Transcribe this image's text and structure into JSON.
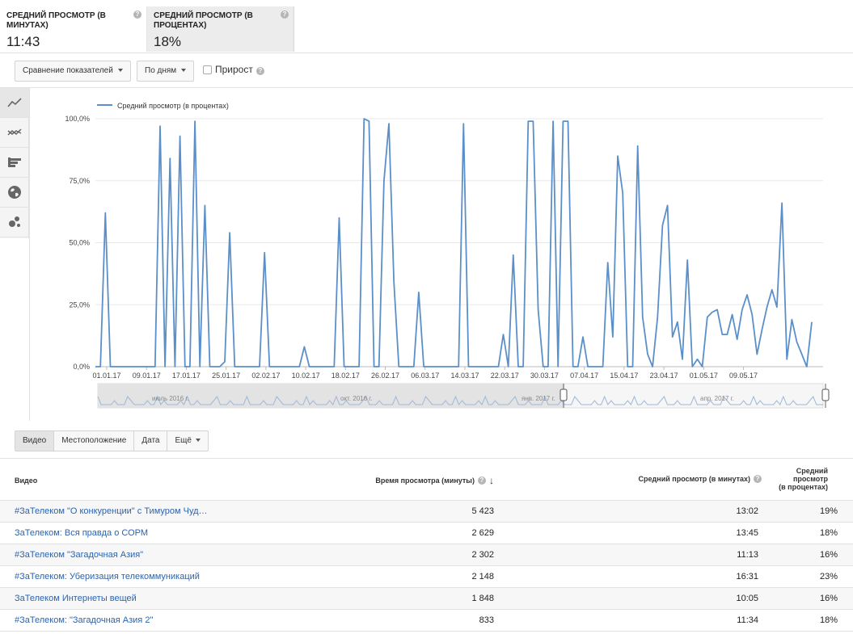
{
  "metrics": [
    {
      "title": "Средний просмотр (в минутах)",
      "value": "11:43"
    },
    {
      "title": "Средний просмотр (в процентах)",
      "value": "18%"
    }
  ],
  "toolbar": {
    "compare_label": "Сравнение показателей",
    "period_label": "По дням",
    "growth_label": "Прирост"
  },
  "sidenav": [
    "line-chart-icon",
    "multi-line-chart-icon",
    "bar-chart-icon",
    "globe-icon",
    "bubble-chart-icon"
  ],
  "chart_data": {
    "type": "line",
    "legend": "Средний просмотр (в процентах)",
    "color": "#5b8fca",
    "y_ticks": [
      "0,0%",
      "25,0%",
      "50,0%",
      "75,0%",
      "100,0%"
    ],
    "ylim": [
      0,
      100
    ],
    "x_ticks": [
      "01.01.17",
      "09.01.17",
      "17.01.17",
      "25.01.17",
      "02.02.17",
      "10.02.17",
      "18.02.17",
      "26.02.17",
      "06.03.17",
      "14.03.17",
      "22.03.17",
      "30.03.17",
      "07.04.17",
      "15.04.17",
      "23.04.17",
      "01.05.17",
      "09.05.17"
    ],
    "values": [
      0,
      0,
      62,
      0,
      0,
      0,
      0,
      0,
      0,
      0,
      0,
      0,
      0,
      97,
      0,
      84,
      0,
      93,
      0,
      0,
      99,
      0,
      65,
      0,
      0,
      0,
      2,
      54,
      0,
      0,
      0,
      0,
      0,
      0,
      46,
      0,
      0,
      0,
      0,
      0,
      0,
      0,
      8,
      0,
      0,
      0,
      0,
      0,
      0,
      60,
      0,
      0,
      0,
      0,
      100,
      99,
      0,
      0,
      75,
      98,
      34,
      0,
      0,
      0,
      0,
      30,
      0,
      0,
      0,
      0,
      0,
      0,
      0,
      0,
      98,
      0,
      0,
      0,
      0,
      0,
      0,
      0,
      13,
      0,
      45,
      0,
      0,
      99,
      99,
      23,
      0,
      0,
      99,
      0,
      99,
      99,
      0,
      0,
      12,
      0,
      0,
      0,
      0,
      42,
      12,
      85,
      70,
      0,
      0,
      89,
      20,
      5,
      0,
      20,
      57,
      65,
      12,
      18,
      3,
      43,
      0,
      3,
      0,
      20,
      22,
      23,
      13,
      13,
      21,
      11,
      23,
      29,
      21,
      5,
      15,
      24,
      31,
      24,
      66,
      3,
      19,
      10,
      5,
      0,
      18
    ],
    "navigator_labels": [
      "июль 2016 г.",
      "окт. 2016 г.",
      "янв. 2017 г.",
      "апр. 2017 г."
    ]
  },
  "subtabs": [
    "Видео",
    "Местоположение",
    "Дата",
    "Ещё"
  ],
  "table": {
    "headers": {
      "video": "Видео",
      "watch": "Время просмотра (минуты)",
      "avgmin": "Средний просмотр (в минутах)",
      "avgpct_lines": [
        "Средний",
        "просмотр",
        "(в процентах)"
      ]
    },
    "rows": [
      {
        "title": "#ЗаТелеком \"О конкуренции\" с Тимуром Чуд…",
        "watch": "5 423",
        "avgmin": "13:02",
        "avgpct": "19%"
      },
      {
        "title": "ЗаТелеком: Вся правда о СОРМ",
        "watch": "2 629",
        "avgmin": "13:45",
        "avgpct": "18%"
      },
      {
        "title": "#ЗаТелеком \"Загадочная Азия\"",
        "watch": "2 302",
        "avgmin": "11:13",
        "avgpct": "16%"
      },
      {
        "title": "#ЗаТелеком: Уберизация телекоммуникаций",
        "watch": "2 148",
        "avgmin": "16:31",
        "avgpct": "23%"
      },
      {
        "title": "ЗаТелеком Интернеты вещей",
        "watch": "1 848",
        "avgmin": "10:05",
        "avgpct": "16%"
      },
      {
        "title": "#ЗаТелеком: \"Загадочная Азия 2\"",
        "watch": "833",
        "avgmin": "11:34",
        "avgpct": "18%"
      }
    ]
  }
}
